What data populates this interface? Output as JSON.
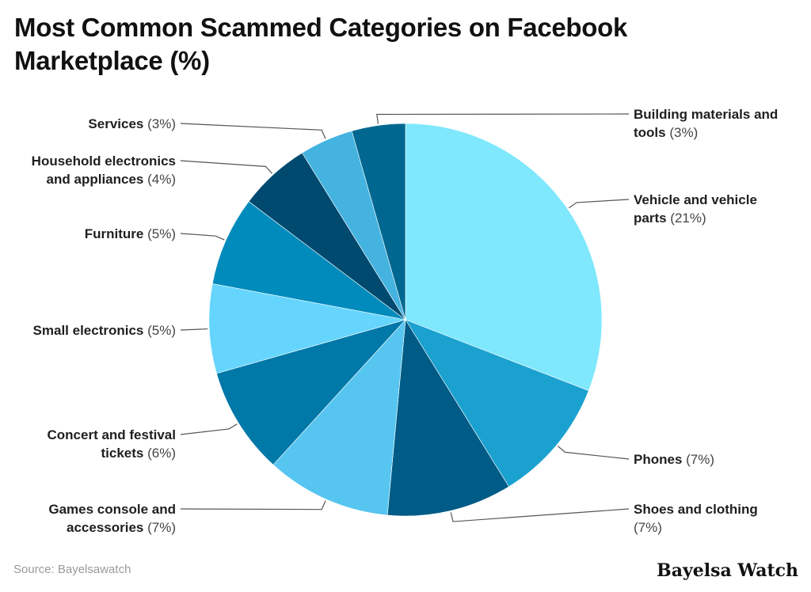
{
  "title": "Most Common Scammed Categories on Facebook Marketplace (%)",
  "source": "Source: Bayelsawatch",
  "brand": "Bayelsa Watch",
  "chart_data": {
    "type": "pie",
    "unit": "%",
    "slices": [
      {
        "label": "Vehicle and vehicle parts",
        "value": 21,
        "pct_text": "(21%)",
        "color": "#7fe8fd"
      },
      {
        "label": "Phones",
        "value": 7,
        "pct_text": "(7%)",
        "color": "#1ba1cf"
      },
      {
        "label": "Shoes and clothing",
        "value": 7,
        "pct_text": "(7%)",
        "color": "#005c87"
      },
      {
        "label": "Games console and accessories",
        "value": 7,
        "pct_text": "(7%)",
        "color": "#56c5f0"
      },
      {
        "label": "Concert and festival tickets",
        "value": 6,
        "pct_text": "(6%)",
        "color": "#0078a8"
      },
      {
        "label": "Small electronics",
        "value": 5,
        "pct_text": "(5%)",
        "color": "#66d5fd"
      },
      {
        "label": "Furniture",
        "value": 5,
        "pct_text": "(5%)",
        "color": "#008bbc"
      },
      {
        "label": "Household electronics and appliances",
        "value": 4,
        "pct_text": "(4%)",
        "color": "#004a70"
      },
      {
        "label": "Services",
        "value": 3,
        "pct_text": "(3%)",
        "color": "#45b3e0"
      },
      {
        "label": "Building materials and tools",
        "value": 3,
        "pct_text": "(3%)",
        "color": "#006890"
      }
    ]
  }
}
